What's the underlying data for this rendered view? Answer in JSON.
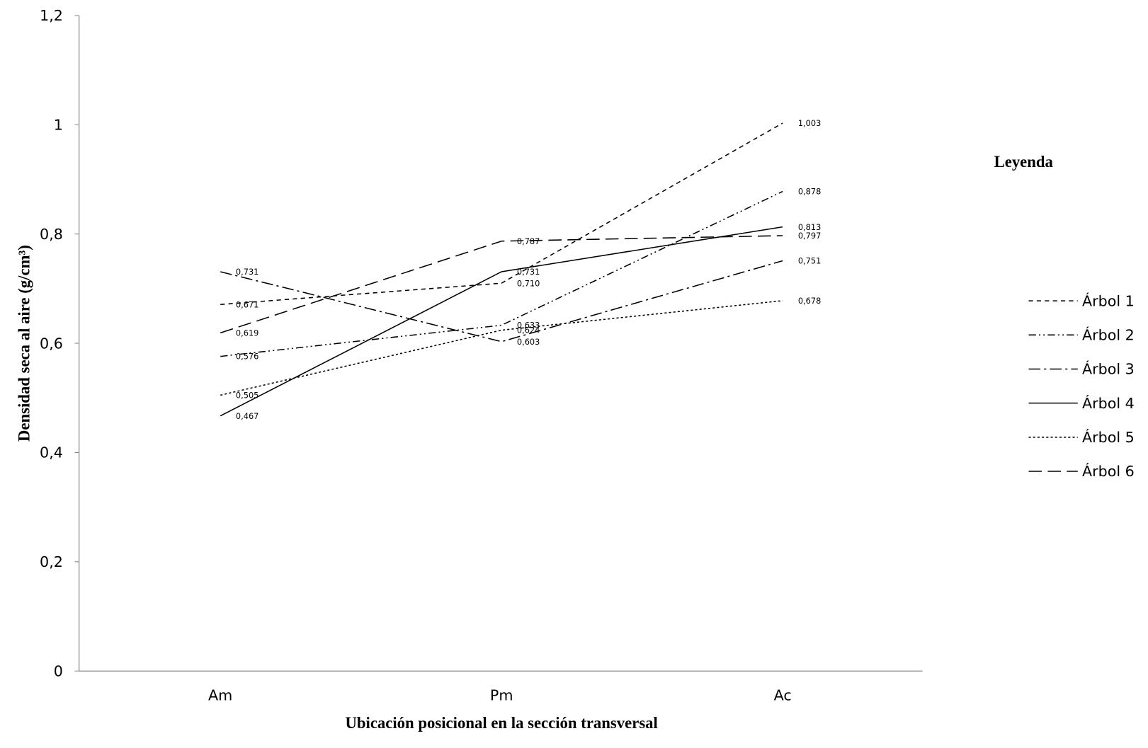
{
  "chart_data": {
    "type": "line",
    "xlabel": "Ubicación posicional en la sección transversal",
    "ylabel": "Densidad seca al aire (g/cm³)",
    "categories": [
      "Am",
      "Pm",
      "Ac"
    ],
    "ylim": [
      0,
      1.2
    ],
    "yticks": [
      "0",
      "0,2",
      "0,4",
      "0,6",
      "0,8",
      "1",
      "1,2"
    ],
    "grid": false,
    "legend_title": "Leyenda",
    "legend_position": "right",
    "series": [
      {
        "name": "Árbol 1",
        "values": [
          0.671,
          0.71,
          1.003
        ],
        "labels": [
          "0,671",
          "0,710",
          "1,003"
        ],
        "dash": "6,5"
      },
      {
        "name": "Árbol 2",
        "values": [
          0.576,
          0.633,
          0.878
        ],
        "labels": [
          "0,576",
          "0,633",
          "0,878"
        ],
        "dash": "10,4,2,4,2,4"
      },
      {
        "name": "Árbol 3",
        "values": [
          0.731,
          0.603,
          0.751
        ],
        "labels": [
          "0,731",
          "0,603",
          "0,751"
        ],
        "dash": "16,5,3,5"
      },
      {
        "name": "Árbol 4",
        "values": [
          0.467,
          0.731,
          0.813
        ],
        "labels": [
          "0,467",
          "0,731",
          "0,813"
        ],
        "dash": ""
      },
      {
        "name": "Árbol 5",
        "values": [
          0.505,
          0.624,
          0.678
        ],
        "labels": [
          "0,505",
          "0,624",
          "0,678"
        ],
        "dash": "3,3"
      },
      {
        "name": "Árbol 6",
        "values": [
          0.619,
          0.787,
          0.797
        ],
        "labels": [
          "0,619",
          "0,787",
          "0,797"
        ],
        "dash": "18,8"
      }
    ]
  }
}
